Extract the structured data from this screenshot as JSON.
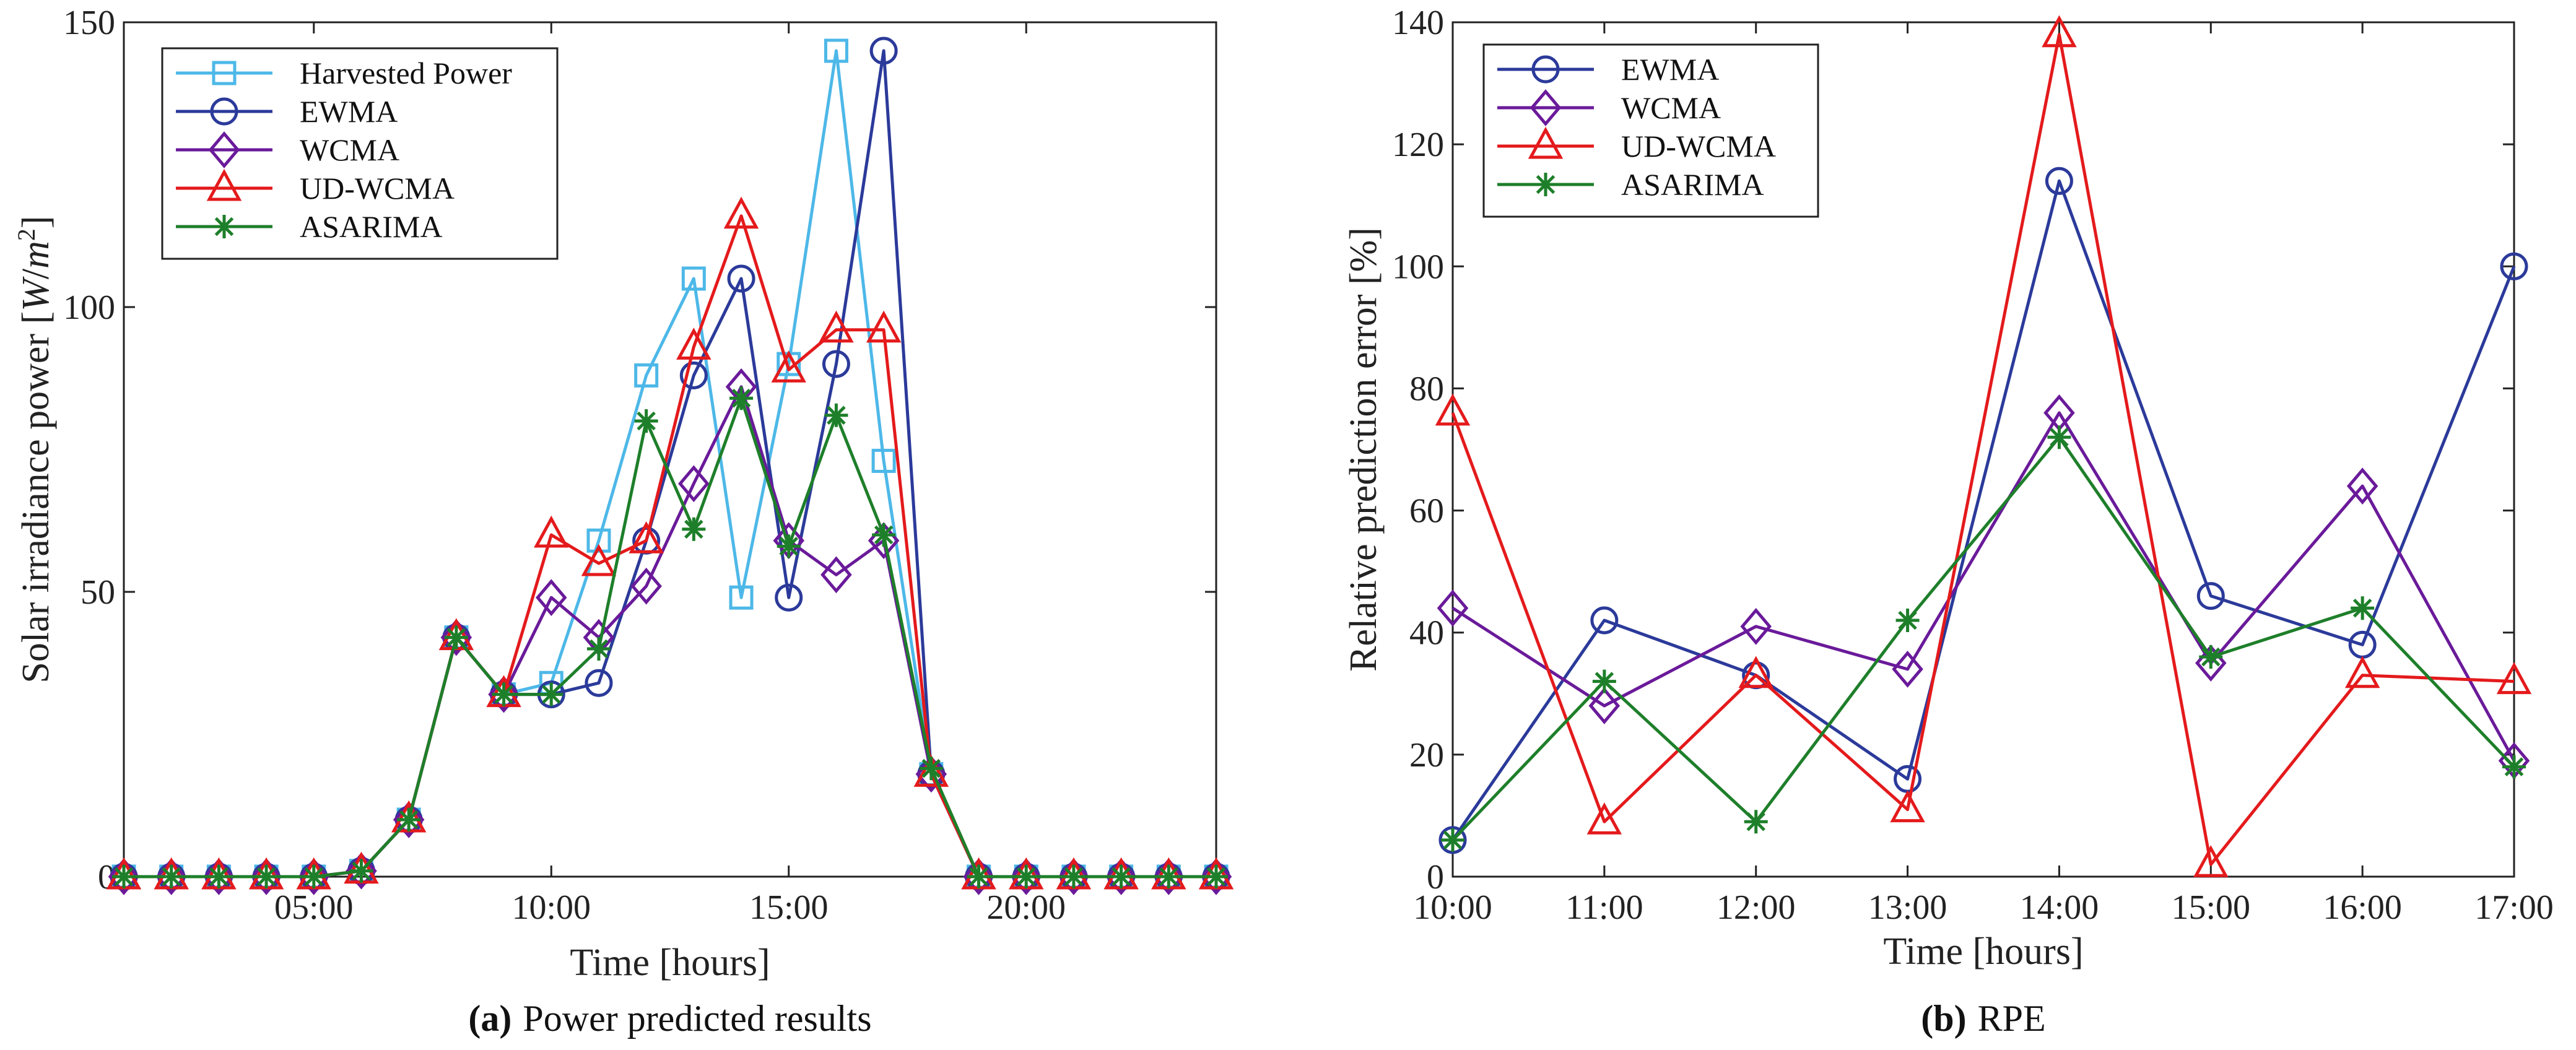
{
  "figure_label_a": "(a)",
  "figure_label_b": "(b)",
  "chart_data": [
    {
      "type": "line",
      "caption_label": "a",
      "caption": "Power predicted results",
      "xlabel": "Time [hours]",
      "ylabel": "Solar irradiance power [W/m²]",
      "ylabel_parts": {
        "text": "Solar irradiance power ",
        "unit_open": "[",
        "unit_W": "W",
        "unit_slash": "/",
        "unit_m": "m",
        "unit_sup": "2",
        "unit_close": "]"
      },
      "xlim": [
        1,
        24
      ],
      "ylim": [
        0,
        150
      ],
      "x": [
        1,
        2,
        3,
        4,
        5,
        6,
        7,
        8,
        9,
        10,
        11,
        12,
        13,
        14,
        15,
        16,
        17,
        18,
        19,
        20,
        21,
        22,
        23,
        24
      ],
      "xticks": [
        5,
        10,
        15,
        20
      ],
      "xtick_labels": [
        "05:00",
        "10:00",
        "15:00",
        "20:00"
      ],
      "yticks": [
        0,
        50,
        100,
        150
      ],
      "ytick_labels": [
        "0",
        "50",
        "100",
        "150"
      ],
      "legend_position": "top-left",
      "series": [
        {
          "name": "Harvested Power",
          "color": "#4db8e8",
          "marker": "square",
          "values": [
            0,
            0,
            0,
            0,
            0,
            1,
            10,
            42,
            32,
            34,
            59,
            88,
            105,
            49,
            90,
            145,
            73,
            18,
            0,
            0,
            0,
            0,
            0,
            0
          ]
        },
        {
          "name": "EWMA",
          "color": "#2b3a9a",
          "marker": "circle",
          "values": [
            0,
            0,
            0,
            0,
            0,
            1,
            10,
            42,
            32,
            32,
            34,
            59,
            88,
            105,
            49,
            90,
            145,
            18,
            0,
            0,
            0,
            0,
            0,
            0
          ]
        },
        {
          "name": "WCMA",
          "color": "#6a1a9a",
          "marker": "diamond",
          "values": [
            0,
            0,
            0,
            0,
            0,
            1,
            10,
            42,
            32,
            49,
            42,
            51,
            69,
            86,
            59,
            53,
            59,
            18,
            0,
            0,
            0,
            0,
            0,
            0
          ]
        },
        {
          "name": "UD-WCMA",
          "color": "#e41a1c",
          "marker": "triangle",
          "values": [
            0,
            0,
            0,
            0,
            0,
            1,
            10,
            42,
            32,
            60,
            55,
            59,
            93,
            116,
            89,
            96,
            96,
            18,
            0,
            0,
            0,
            0,
            0,
            0
          ]
        },
        {
          "name": "ASARIMA",
          "color": "#1e7f2a",
          "marker": "asterisk",
          "values": [
            0,
            0,
            0,
            0,
            0,
            1,
            10,
            42,
            32,
            32,
            40,
            80,
            61,
            84,
            58,
            81,
            60,
            19,
            0,
            0,
            0,
            0,
            0,
            0
          ]
        }
      ]
    },
    {
      "type": "line",
      "caption_label": "b",
      "caption": "RPE",
      "xlabel": "Time [hours]",
      "ylabel": "Relative prediction error [%]",
      "xlim": [
        10,
        17
      ],
      "ylim": [
        0,
        140
      ],
      "x": [
        10,
        11,
        12,
        13,
        14,
        15,
        16,
        17
      ],
      "xticks": [
        10,
        11,
        12,
        13,
        14,
        15,
        16,
        17
      ],
      "xtick_labels": [
        "10:00",
        "11:00",
        "12:00",
        "13:00",
        "14:00",
        "15:00",
        "16:00",
        "17:00"
      ],
      "yticks": [
        0,
        20,
        40,
        60,
        80,
        100,
        120,
        140
      ],
      "ytick_labels": [
        "0",
        "20",
        "40",
        "60",
        "80",
        "100",
        "120",
        "140"
      ],
      "legend_position": "top-left",
      "series": [
        {
          "name": "EWMA",
          "color": "#2b3a9a",
          "marker": "circle",
          "values": [
            6,
            42,
            33,
            16,
            114,
            46,
            38,
            100
          ]
        },
        {
          "name": "WCMA",
          "color": "#6a1a9a",
          "marker": "diamond",
          "values": [
            44,
            28,
            41,
            34,
            76,
            35,
            64,
            19
          ]
        },
        {
          "name": "UD-WCMA",
          "color": "#e41a1c",
          "marker": "triangle",
          "values": [
            76,
            9,
            33,
            11,
            138,
            2,
            33,
            32
          ]
        },
        {
          "name": "ASARIMA",
          "color": "#1e7f2a",
          "marker": "asterisk",
          "values": [
            6,
            32,
            9,
            42,
            72,
            36,
            44,
            18
          ]
        }
      ]
    }
  ]
}
